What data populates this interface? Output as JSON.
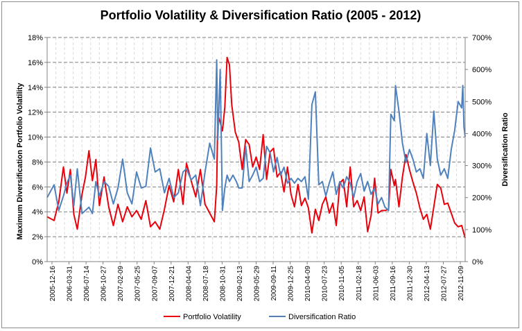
{
  "chart_data": {
    "type": "line",
    "title": "Portfolio Volatility  & Diversification Ratio (2005 - 2012)",
    "ylabel_left": "Maximum Diversification Portfolio Volatility",
    "ylabel_right": "Diversification Ratio",
    "xlabel": "",
    "y_left": {
      "min": 0,
      "max": 18,
      "step": 2,
      "unit": "%"
    },
    "y_right": {
      "min": 0,
      "max": 700,
      "step": 100,
      "unit": "%"
    },
    "y_left_ticks": [
      "0%",
      "2%",
      "4%",
      "6%",
      "8%",
      "10%",
      "12%",
      "14%",
      "16%",
      "18%"
    ],
    "y_right_ticks": [
      "0%",
      "100%",
      "200%",
      "300%",
      "400%",
      "500%",
      "600%",
      "700%"
    ],
    "x_labels": [
      "2005-12-16",
      "2006-03-31",
      "2006-07-14",
      "2006-10-27",
      "2007-02-09",
      "2007-05-25",
      "2007-09-07",
      "2007-12-21",
      "2008-04-04",
      "2008-07-18",
      "2008-10-31",
      "2009-02-13",
      "2009-05-29",
      "2009-09-11",
      "2009-12-25",
      "2010-04-09",
      "2010-07-23",
      "2010-11-05",
      "2011-02-18",
      "2011-06-03",
      "2011-09-16",
      "2011-12-30",
      "2012-04-13",
      "2012-07-27",
      "2012-11-09"
    ],
    "grid": {
      "horizontal": true,
      "vertical": true
    },
    "legend_position": "bottom",
    "x_start": "2005-12-16",
    "x_end": "2012-11-09",
    "series": [
      {
        "name": "Portfolio Volatility",
        "axis": "left",
        "color": "#e8000b",
        "points": [
          [
            "2005-12-16",
            3.6
          ],
          [
            "2006-01-27",
            3.3
          ],
          [
            "2006-02-24",
            4.8
          ],
          [
            "2006-03-24",
            7.6
          ],
          [
            "2006-04-14",
            5.5
          ],
          [
            "2006-05-05",
            7.4
          ],
          [
            "2006-05-26",
            3.8
          ],
          [
            "2006-06-16",
            2.6
          ],
          [
            "2006-07-14",
            5.4
          ],
          [
            "2006-08-04",
            6.8
          ],
          [
            "2006-08-25",
            8.9
          ],
          [
            "2006-09-15",
            6.5
          ],
          [
            "2006-10-06",
            8.2
          ],
          [
            "2006-10-27",
            4.5
          ],
          [
            "2006-11-24",
            6.8
          ],
          [
            "2006-12-22",
            4.4
          ],
          [
            "2007-01-19",
            2.9
          ],
          [
            "2007-02-16",
            4.6
          ],
          [
            "2007-03-16",
            3.2
          ],
          [
            "2007-04-13",
            4.4
          ],
          [
            "2007-05-11",
            3.6
          ],
          [
            "2007-06-08",
            4.1
          ],
          [
            "2007-07-06",
            3.4
          ],
          [
            "2007-08-03",
            4.9
          ],
          [
            "2007-08-31",
            2.8
          ],
          [
            "2007-09-28",
            3.2
          ],
          [
            "2007-10-26",
            2.6
          ],
          [
            "2007-11-23",
            4.2
          ],
          [
            "2007-12-21",
            6.1
          ],
          [
            "2008-01-18",
            4.8
          ],
          [
            "2008-02-15",
            7.4
          ],
          [
            "2008-03-14",
            4.6
          ],
          [
            "2008-04-04",
            7.9
          ],
          [
            "2008-05-02",
            6.5
          ],
          [
            "2008-05-30",
            5.2
          ],
          [
            "2008-06-27",
            7.4
          ],
          [
            "2008-07-25",
            4.6
          ],
          [
            "2008-08-22",
            3.9
          ],
          [
            "2008-09-19",
            3.2
          ],
          [
            "2008-10-03",
            6.1
          ],
          [
            "2008-10-10",
            11.8
          ],
          [
            "2008-10-24",
            11.2
          ],
          [
            "2008-11-07",
            10.5
          ],
          [
            "2008-11-21",
            12.4
          ],
          [
            "2008-12-05",
            16.4
          ],
          [
            "2008-12-19",
            15.8
          ],
          [
            "2009-01-02",
            12.6
          ],
          [
            "2009-01-23",
            10.4
          ],
          [
            "2009-02-13",
            9.6
          ],
          [
            "2009-03-06",
            7.4
          ],
          [
            "2009-03-27",
            9.8
          ],
          [
            "2009-04-17",
            9.4
          ],
          [
            "2009-05-08",
            7.6
          ],
          [
            "2009-05-29",
            8.4
          ],
          [
            "2009-06-19",
            7.4
          ],
          [
            "2009-07-10",
            10.2
          ],
          [
            "2009-07-31",
            6.6
          ],
          [
            "2009-08-21",
            8.8
          ],
          [
            "2009-09-11",
            9.1
          ],
          [
            "2009-10-02",
            6.8
          ],
          [
            "2009-10-23",
            7.2
          ],
          [
            "2009-11-13",
            5.6
          ],
          [
            "2009-12-04",
            7.6
          ],
          [
            "2009-12-25",
            5.4
          ],
          [
            "2010-01-15",
            4.4
          ],
          [
            "2010-02-05",
            6.2
          ],
          [
            "2010-02-26",
            4.5
          ],
          [
            "2010-03-19",
            5.1
          ],
          [
            "2010-04-09",
            4.3
          ],
          [
            "2010-04-30",
            2.3
          ],
          [
            "2010-05-21",
            4.2
          ],
          [
            "2010-06-11",
            3.3
          ],
          [
            "2010-07-02",
            4.6
          ],
          [
            "2010-07-23",
            5.2
          ],
          [
            "2010-08-13",
            3.9
          ],
          [
            "2010-09-03",
            4.7
          ],
          [
            "2010-09-24",
            2.9
          ],
          [
            "2010-10-15",
            6.3
          ],
          [
            "2010-11-05",
            6.6
          ],
          [
            "2010-11-26",
            4.4
          ],
          [
            "2010-12-17",
            7.6
          ],
          [
            "2011-01-07",
            4.4
          ],
          [
            "2011-01-28",
            4.9
          ],
          [
            "2011-02-18",
            4.1
          ],
          [
            "2011-03-11",
            5.2
          ],
          [
            "2011-04-01",
            2.4
          ],
          [
            "2011-04-22",
            3.7
          ],
          [
            "2011-05-13",
            6.7
          ],
          [
            "2011-06-03",
            3.9
          ],
          [
            "2011-06-24",
            4.1
          ],
          [
            "2011-07-15",
            4.1
          ],
          [
            "2011-08-05",
            4.2
          ],
          [
            "2011-08-19",
            7.4
          ],
          [
            "2011-09-09",
            6.1
          ],
          [
            "2011-09-16",
            6.6
          ],
          [
            "2011-10-07",
            4.4
          ],
          [
            "2011-10-28",
            6.8
          ],
          [
            "2011-11-18",
            8.6
          ],
          [
            "2011-12-09",
            7.4
          ],
          [
            "2011-12-30",
            6.4
          ],
          [
            "2012-01-20",
            5.5
          ],
          [
            "2012-02-10",
            4.3
          ],
          [
            "2012-03-02",
            3.4
          ],
          [
            "2012-03-23",
            3.8
          ],
          [
            "2012-04-13",
            2.6
          ],
          [
            "2012-05-04",
            4.4
          ],
          [
            "2012-05-25",
            6.2
          ],
          [
            "2012-06-15",
            5.9
          ],
          [
            "2012-07-06",
            4.6
          ],
          [
            "2012-07-27",
            4.7
          ],
          [
            "2012-08-17",
            3.9
          ],
          [
            "2012-09-07",
            3.1
          ],
          [
            "2012-09-28",
            2.8
          ],
          [
            "2012-10-19",
            2.9
          ],
          [
            "2012-11-09",
            1.9
          ]
        ]
      },
      {
        "name": "Diversification Ratio",
        "axis": "right",
        "color": "#4f81bd",
        "points": [
          [
            "2005-12-16",
            200
          ],
          [
            "2006-01-27",
            240
          ],
          [
            "2006-02-24",
            160
          ],
          [
            "2006-03-24",
            205
          ],
          [
            "2006-04-14",
            245
          ],
          [
            "2006-05-05",
            270
          ],
          [
            "2006-05-26",
            175
          ],
          [
            "2006-06-16",
            290
          ],
          [
            "2006-07-14",
            150
          ],
          [
            "2006-08-04",
            160
          ],
          [
            "2006-08-25",
            170
          ],
          [
            "2006-09-15",
            150
          ],
          [
            "2006-10-06",
            250
          ],
          [
            "2006-10-27",
            205
          ],
          [
            "2006-11-24",
            250
          ],
          [
            "2006-12-22",
            235
          ],
          [
            "2007-01-19",
            180
          ],
          [
            "2007-02-16",
            230
          ],
          [
            "2007-03-16",
            320
          ],
          [
            "2007-04-13",
            215
          ],
          [
            "2007-05-11",
            180
          ],
          [
            "2007-06-08",
            280
          ],
          [
            "2007-07-06",
            230
          ],
          [
            "2007-08-03",
            235
          ],
          [
            "2007-08-31",
            355
          ],
          [
            "2007-09-28",
            280
          ],
          [
            "2007-10-26",
            290
          ],
          [
            "2007-11-23",
            215
          ],
          [
            "2007-12-21",
            260
          ],
          [
            "2008-01-18",
            200
          ],
          [
            "2008-02-15",
            215
          ],
          [
            "2008-03-14",
            280
          ],
          [
            "2008-04-04",
            290
          ],
          [
            "2008-05-02",
            255
          ],
          [
            "2008-05-30",
            270
          ],
          [
            "2008-06-27",
            175
          ],
          [
            "2008-07-25",
            280
          ],
          [
            "2008-08-22",
            370
          ],
          [
            "2008-09-19",
            320
          ],
          [
            "2008-10-03",
            630
          ],
          [
            "2008-10-10",
            380
          ],
          [
            "2008-10-24",
            600
          ],
          [
            "2008-11-07",
            160
          ],
          [
            "2008-11-21",
            230
          ],
          [
            "2008-12-05",
            270
          ],
          [
            "2008-12-19",
            250
          ],
          [
            "2009-01-09",
            270
          ],
          [
            "2009-01-30",
            250
          ],
          [
            "2009-02-13",
            230
          ],
          [
            "2009-03-06",
            230
          ],
          [
            "2009-03-27",
            360
          ],
          [
            "2009-04-17",
            250
          ],
          [
            "2009-05-08",
            270
          ],
          [
            "2009-05-29",
            295
          ],
          [
            "2009-06-19",
            250
          ],
          [
            "2009-07-10",
            260
          ],
          [
            "2009-07-31",
            360
          ],
          [
            "2009-08-21",
            340
          ],
          [
            "2009-09-11",
            280
          ],
          [
            "2009-10-02",
            325
          ],
          [
            "2009-10-23",
            270
          ],
          [
            "2009-11-13",
            295
          ],
          [
            "2009-12-04",
            245
          ],
          [
            "2009-12-25",
            260
          ],
          [
            "2010-01-15",
            245
          ],
          [
            "2010-02-05",
            260
          ],
          [
            "2010-02-26",
            250
          ],
          [
            "2010-03-19",
            265
          ],
          [
            "2010-04-09",
            195
          ],
          [
            "2010-04-30",
            490
          ],
          [
            "2010-05-21",
            530
          ],
          [
            "2010-06-11",
            240
          ],
          [
            "2010-07-02",
            250
          ],
          [
            "2010-07-23",
            205
          ],
          [
            "2010-08-13",
            245
          ],
          [
            "2010-09-03",
            280
          ],
          [
            "2010-09-24",
            210
          ],
          [
            "2010-10-15",
            250
          ],
          [
            "2010-11-05",
            230
          ],
          [
            "2010-11-26",
            265
          ],
          [
            "2010-12-17",
            245
          ],
          [
            "2011-01-07",
            200
          ],
          [
            "2011-01-28",
            250
          ],
          [
            "2011-02-18",
            275
          ],
          [
            "2011-03-11",
            220
          ],
          [
            "2011-04-01",
            250
          ],
          [
            "2011-04-22",
            210
          ],
          [
            "2011-05-13",
            230
          ],
          [
            "2011-06-03",
            180
          ],
          [
            "2011-06-24",
            200
          ],
          [
            "2011-07-15",
            170
          ],
          [
            "2011-08-05",
            160
          ],
          [
            "2011-08-19",
            460
          ],
          [
            "2011-09-09",
            440
          ],
          [
            "2011-09-16",
            550
          ],
          [
            "2011-10-07",
            470
          ],
          [
            "2011-10-28",
            370
          ],
          [
            "2011-11-18",
            310
          ],
          [
            "2011-12-09",
            350
          ],
          [
            "2011-12-30",
            320
          ],
          [
            "2012-01-20",
            280
          ],
          [
            "2012-02-10",
            290
          ],
          [
            "2012-03-02",
            260
          ],
          [
            "2012-03-23",
            400
          ],
          [
            "2012-04-13",
            300
          ],
          [
            "2012-05-04",
            470
          ],
          [
            "2012-05-25",
            320
          ],
          [
            "2012-06-15",
            270
          ],
          [
            "2012-07-06",
            290
          ],
          [
            "2012-07-27",
            260
          ],
          [
            "2012-08-17",
            350
          ],
          [
            "2012-09-07",
            410
          ],
          [
            "2012-09-28",
            500
          ],
          [
            "2012-10-19",
            480
          ],
          [
            "2012-10-26",
            550
          ],
          [
            "2012-11-02",
            420
          ],
          [
            "2012-11-09",
            390
          ]
        ]
      }
    ]
  }
}
